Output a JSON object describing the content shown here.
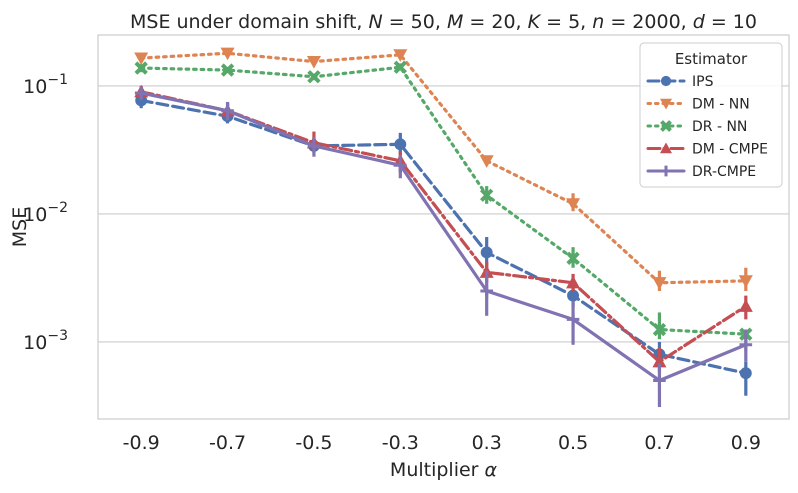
{
  "chart_data": {
    "type": "line",
    "title": "MSE under domain shift, N = 50, M = 20, K = 5, n = 2000, d = 10",
    "xlabel": "Multiplier α",
    "ylabel": "MSE",
    "yscale": "log",
    "ylim": [
      0.00025,
      0.25
    ],
    "categories": [
      "-0.9",
      "-0.7",
      "-0.5",
      "-0.3",
      "0.3",
      "0.5",
      "0.7",
      "0.9"
    ],
    "y_ticks": [
      {
        "value": 0.1,
        "base": "10",
        "exp": "−1"
      },
      {
        "value": 0.01,
        "base": "10",
        "exp": "−2"
      },
      {
        "value": 0.001,
        "base": "10",
        "exp": "−3"
      }
    ],
    "grid": true,
    "legend": {
      "title": "Estimator",
      "position": "top-right",
      "entries": [
        "IPS",
        "DM - NN",
        "DR - NN",
        "DM - CMPE",
        "DR-CMPE"
      ]
    },
    "series": [
      {
        "name": "IPS",
        "color": "#4c72b0",
        "dash": "dashed",
        "marker": "circle",
        "values": [
          0.077,
          0.058,
          0.034,
          0.035,
          0.005,
          0.0023,
          0.0008,
          0.00057
        ],
        "err_low": [
          0.067,
          0.051,
          0.031,
          0.029,
          0.0038,
          0.0019,
          0.0007,
          0.00038
        ],
        "err_high": [
          0.088,
          0.065,
          0.037,
          0.043,
          0.0066,
          0.0029,
          0.001,
          0.0007
        ]
      },
      {
        "name": "DM - NN",
        "color": "#dd8452",
        "dash": "dotted",
        "marker": "triangle-down",
        "values": [
          0.165,
          0.18,
          0.155,
          0.175,
          0.026,
          0.012,
          0.0029,
          0.003
        ],
        "err_low": [
          0.158,
          0.17,
          0.148,
          0.165,
          0.024,
          0.0105,
          0.0025,
          0.0025
        ],
        "err_high": [
          0.172,
          0.19,
          0.162,
          0.185,
          0.028,
          0.0145,
          0.0036,
          0.0038
        ]
      },
      {
        "name": "DR - NN",
        "color": "#55a868",
        "dash": "dotted",
        "marker": "x",
        "values": [
          0.138,
          0.133,
          0.118,
          0.14,
          0.014,
          0.0045,
          0.00125,
          0.00115
        ],
        "err_low": [
          0.128,
          0.126,
          0.111,
          0.132,
          0.012,
          0.0038,
          0.00105,
          0.00105
        ],
        "err_high": [
          0.148,
          0.14,
          0.125,
          0.15,
          0.0165,
          0.0055,
          0.0017,
          0.00125
        ]
      },
      {
        "name": "DM - CMPE",
        "color": "#c44e52",
        "dash": "dashdot",
        "marker": "triangle-up",
        "values": [
          0.09,
          0.064,
          0.036,
          0.026,
          0.0035,
          0.0029,
          0.0007,
          0.0019
        ],
        "err_low": [
          0.081,
          0.055,
          0.03,
          0.021,
          0.0029,
          0.0025,
          0.00058,
          0.0015
        ],
        "err_high": [
          0.1,
          0.074,
          0.044,
          0.031,
          0.0042,
          0.0034,
          0.0009,
          0.0023
        ]
      },
      {
        "name": "DR-CMPE",
        "color": "#8172b2",
        "dash": "solid",
        "marker": "plus",
        "values": [
          0.088,
          0.064,
          0.034,
          0.024,
          0.0025,
          0.0015,
          0.0005,
          0.00095
        ],
        "err_low": [
          0.078,
          0.054,
          0.028,
          0.019,
          0.0016,
          0.00095,
          0.00031,
          0.0007
        ],
        "err_high": [
          0.099,
          0.075,
          0.04,
          0.029,
          0.0036,
          0.0021,
          0.00068,
          0.00125
        ]
      }
    ]
  }
}
